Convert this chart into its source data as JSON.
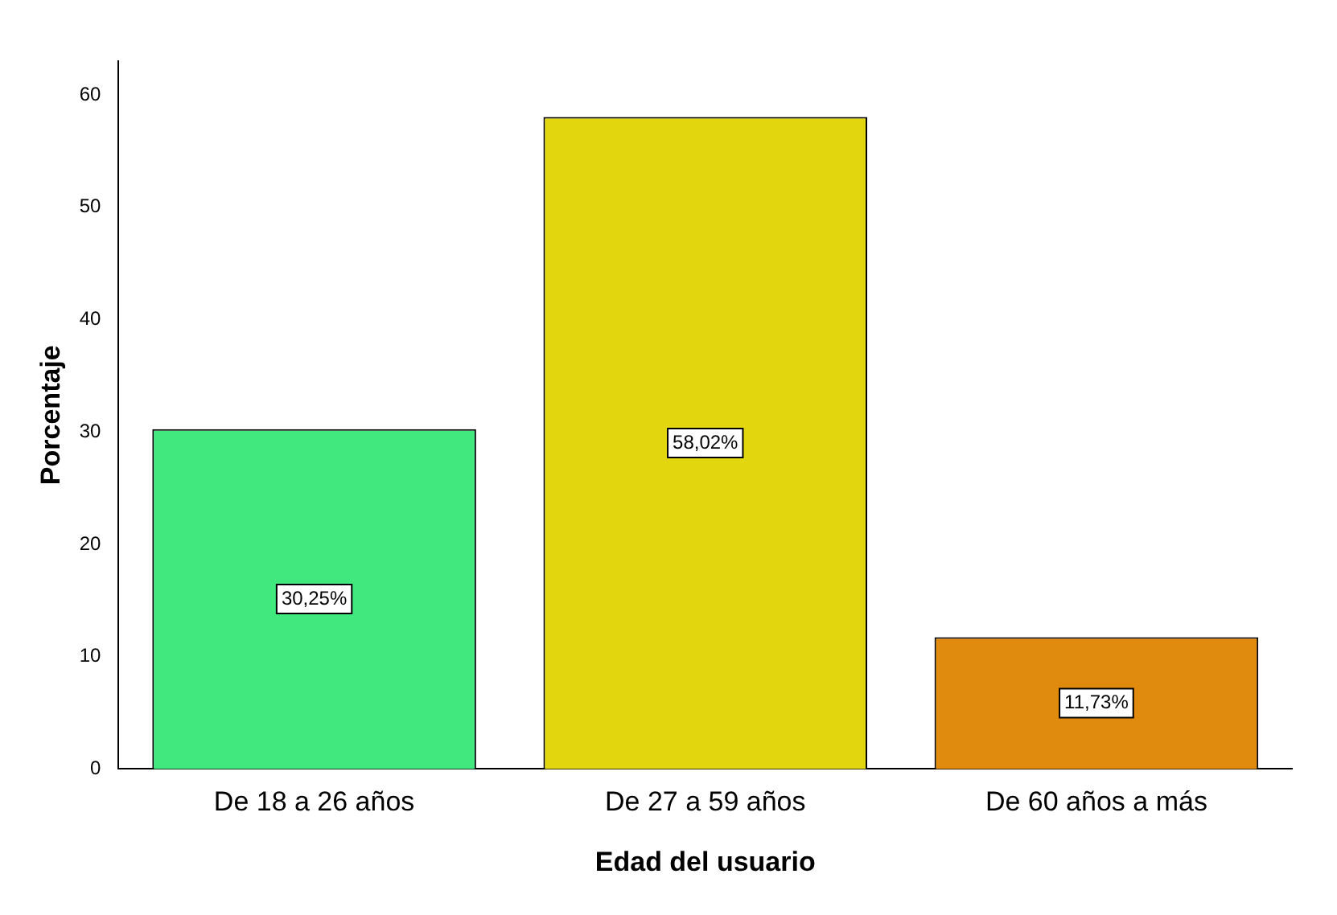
{
  "chart_data": {
    "type": "bar",
    "xlabel": "Edad del usuario",
    "ylabel": "Porcentaje",
    "categories": [
      "De 18 a 26 años",
      "De 27 a 59 años",
      "De 60 años a más"
    ],
    "values": [
      30.25,
      58.02,
      11.73
    ],
    "colors": [
      "#40e87e",
      "#e2d70e",
      "#e08a0e"
    ],
    "value_labels": [
      "30,25%",
      "58,02%",
      "11,73%"
    ],
    "ylim": [
      0,
      63
    ],
    "yticks": [
      0,
      10,
      20,
      30,
      40,
      50,
      60
    ],
    "grid": false,
    "legend": false
  }
}
